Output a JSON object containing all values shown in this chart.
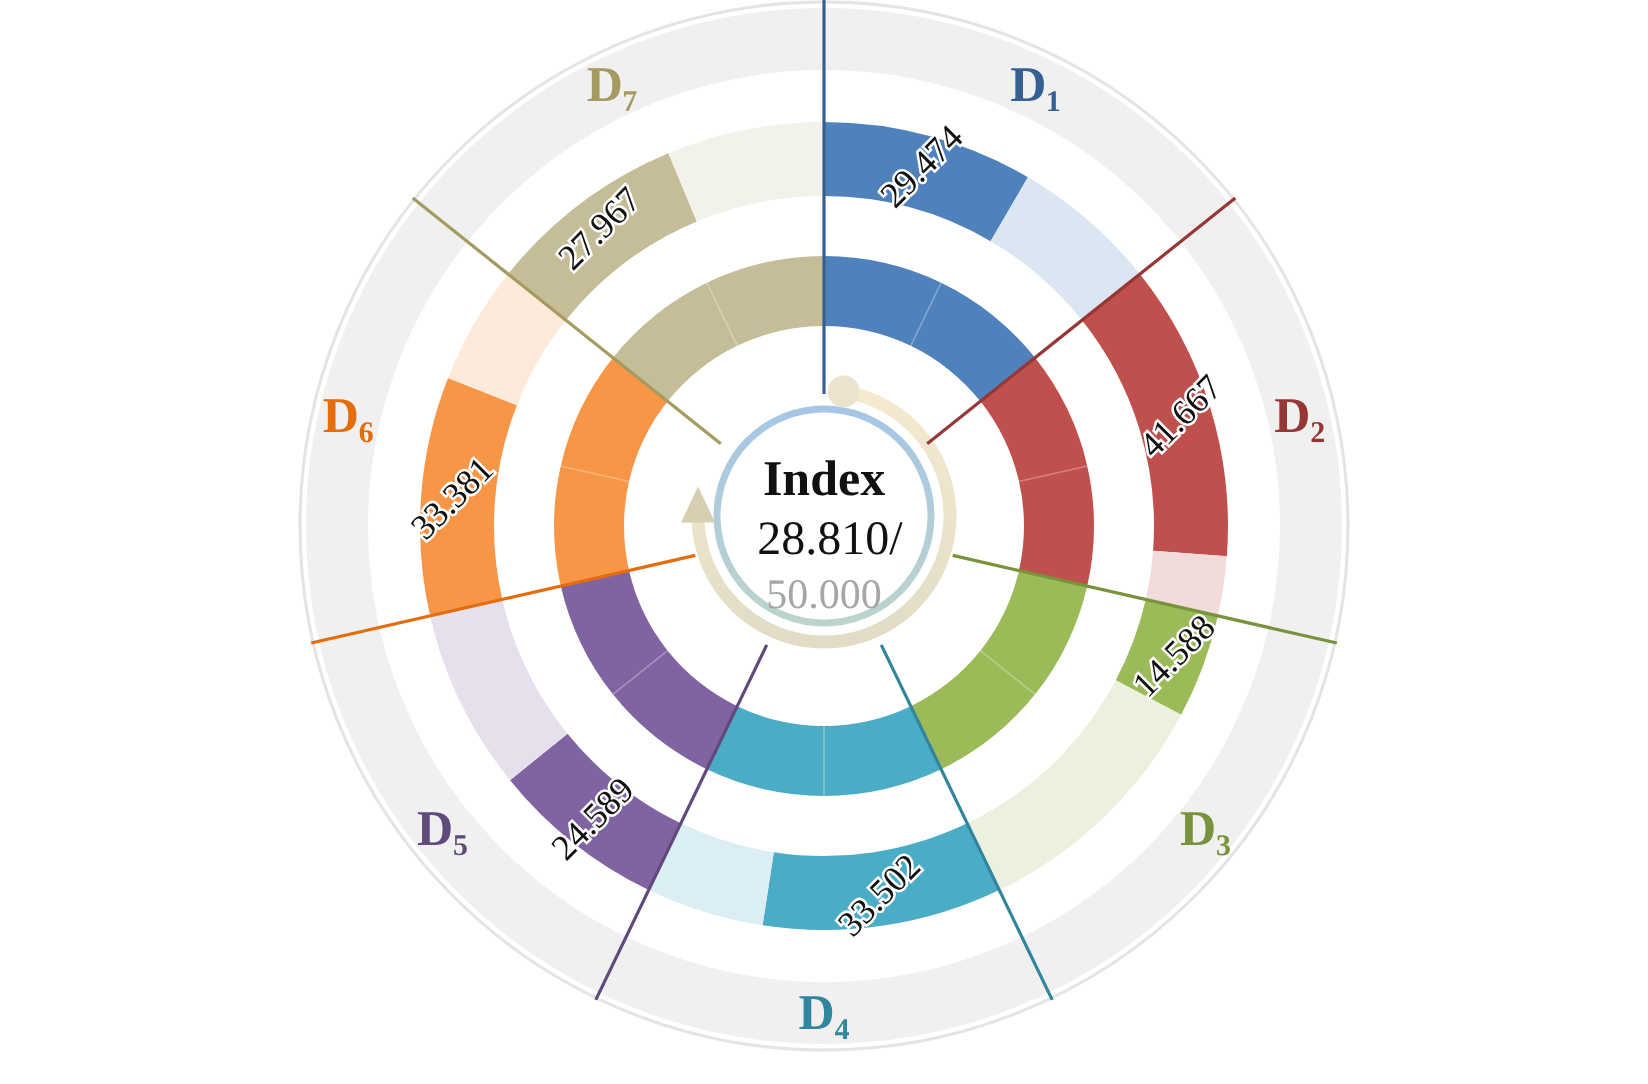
{
  "chart_data": {
    "type": "other",
    "title": "Index",
    "annotations": [
      "28.810/",
      "50.000"
    ],
    "categories": [
      "D₁",
      "D₂",
      "D₃",
      "D₄",
      "D₅",
      "D₆",
      "D₇"
    ],
    "values": [
      29.474,
      41.667,
      14.588,
      33.502,
      24.589,
      33.381,
      27.967
    ],
    "colors": [
      "#4f81bd",
      "#c0504d",
      "#9bbb59",
      "#4bacc6",
      "#8064a2",
      "#f79646",
      "#c4bd97"
    ],
    "data_labels": true
  }
}
